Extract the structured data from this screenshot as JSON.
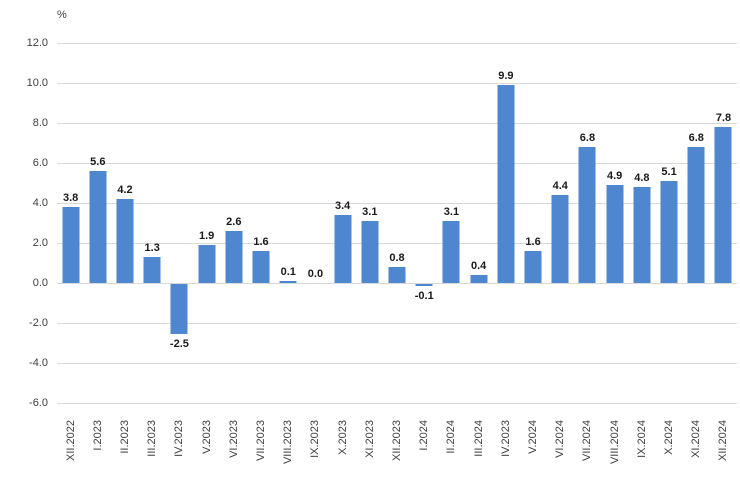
{
  "chart_data": {
    "type": "bar",
    "title": "",
    "xlabel": "",
    "ylabel": "%",
    "categories": [
      "XII.2022",
      "I.2023",
      "II.2023",
      "III.2023",
      "IV.2023",
      "V.2023",
      "VI.2023",
      "VII.2023",
      "VIII.2023",
      "IX.2023",
      "X.2023",
      "XI.2023",
      "XII.2023",
      "I.2024",
      "II.2024",
      "III.2024",
      "IV.2023",
      "V.2024",
      "VI.2024",
      "VII.2024",
      "VIII.2024",
      "IX.2024",
      "X.2024",
      "XI.2024",
      "XII.2024"
    ],
    "values": [
      3.8,
      5.6,
      4.2,
      1.3,
      -2.5,
      1.9,
      2.6,
      1.6,
      0.1,
      0.0,
      3.4,
      3.1,
      0.8,
      -0.1,
      3.1,
      0.4,
      9.9,
      1.6,
      4.4,
      6.8,
      4.9,
      4.8,
      5.1,
      6.8,
      7.8
    ],
    "value_labels": [
      "3.8",
      "5.6",
      "4.2",
      "1.3",
      "-2.5",
      "1.9",
      "2.6",
      "1.6",
      "0.1",
      "0.0",
      "3.4",
      "3.1",
      "0.8",
      "-0.1",
      "3.1",
      "0.4",
      "9.9",
      "1.6",
      "4.4",
      "6.8",
      "4.9",
      "4.8",
      "5.1",
      "6.8",
      "7.8"
    ],
    "ylim": [
      -6.0,
      12.0
    ],
    "ytick_step": 2.0,
    "ytick_labels": [
      "12.0",
      "10.0",
      "8.0",
      "6.0",
      "4.0",
      "2.0",
      "0.0",
      "-2.0",
      "-4.0",
      "-6.0"
    ],
    "grid": "horizontal",
    "legend": "none",
    "colors": {
      "bar": "#4e87d0",
      "grid": "#d9d9d9",
      "axis_text": "#3f3f3f",
      "value_label_text": "#1a1a1a",
      "background": "#ffffff"
    }
  }
}
